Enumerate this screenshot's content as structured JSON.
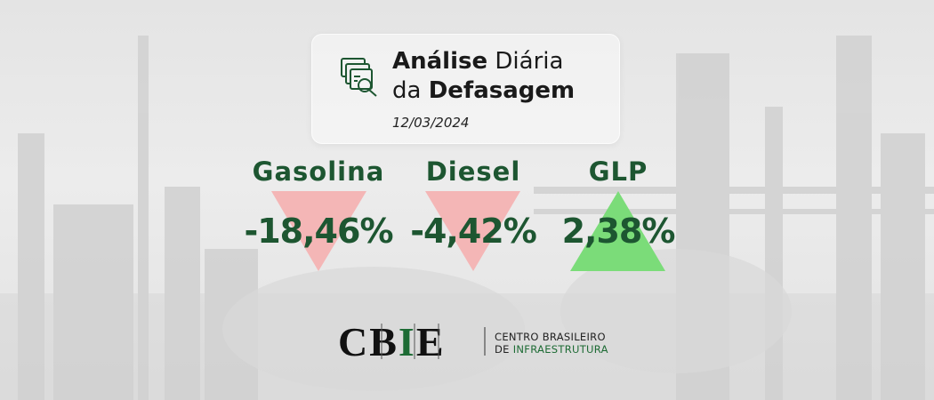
{
  "header": {
    "title_bold_1": "Análise",
    "title_regular_1": "Diária",
    "title_regular_2": "da",
    "title_bold_2": "Defasagem",
    "date": "12/03/2024"
  },
  "items": [
    {
      "label": "Gasolina",
      "value": "-18,46%"
    },
    {
      "label": "Diesel",
      "value": "-4,42%"
    },
    {
      "label": "GLP",
      "value": "2,38%"
    }
  ],
  "logo": {
    "mark_left": "CB",
    "mark_highlight": "I",
    "mark_right": "E",
    "name_line_1": "CENTRO BRASILEIRO",
    "name_line_2_prefix": "DE",
    "name_line_2_highlight": "INFRAESTRUTURA"
  }
}
